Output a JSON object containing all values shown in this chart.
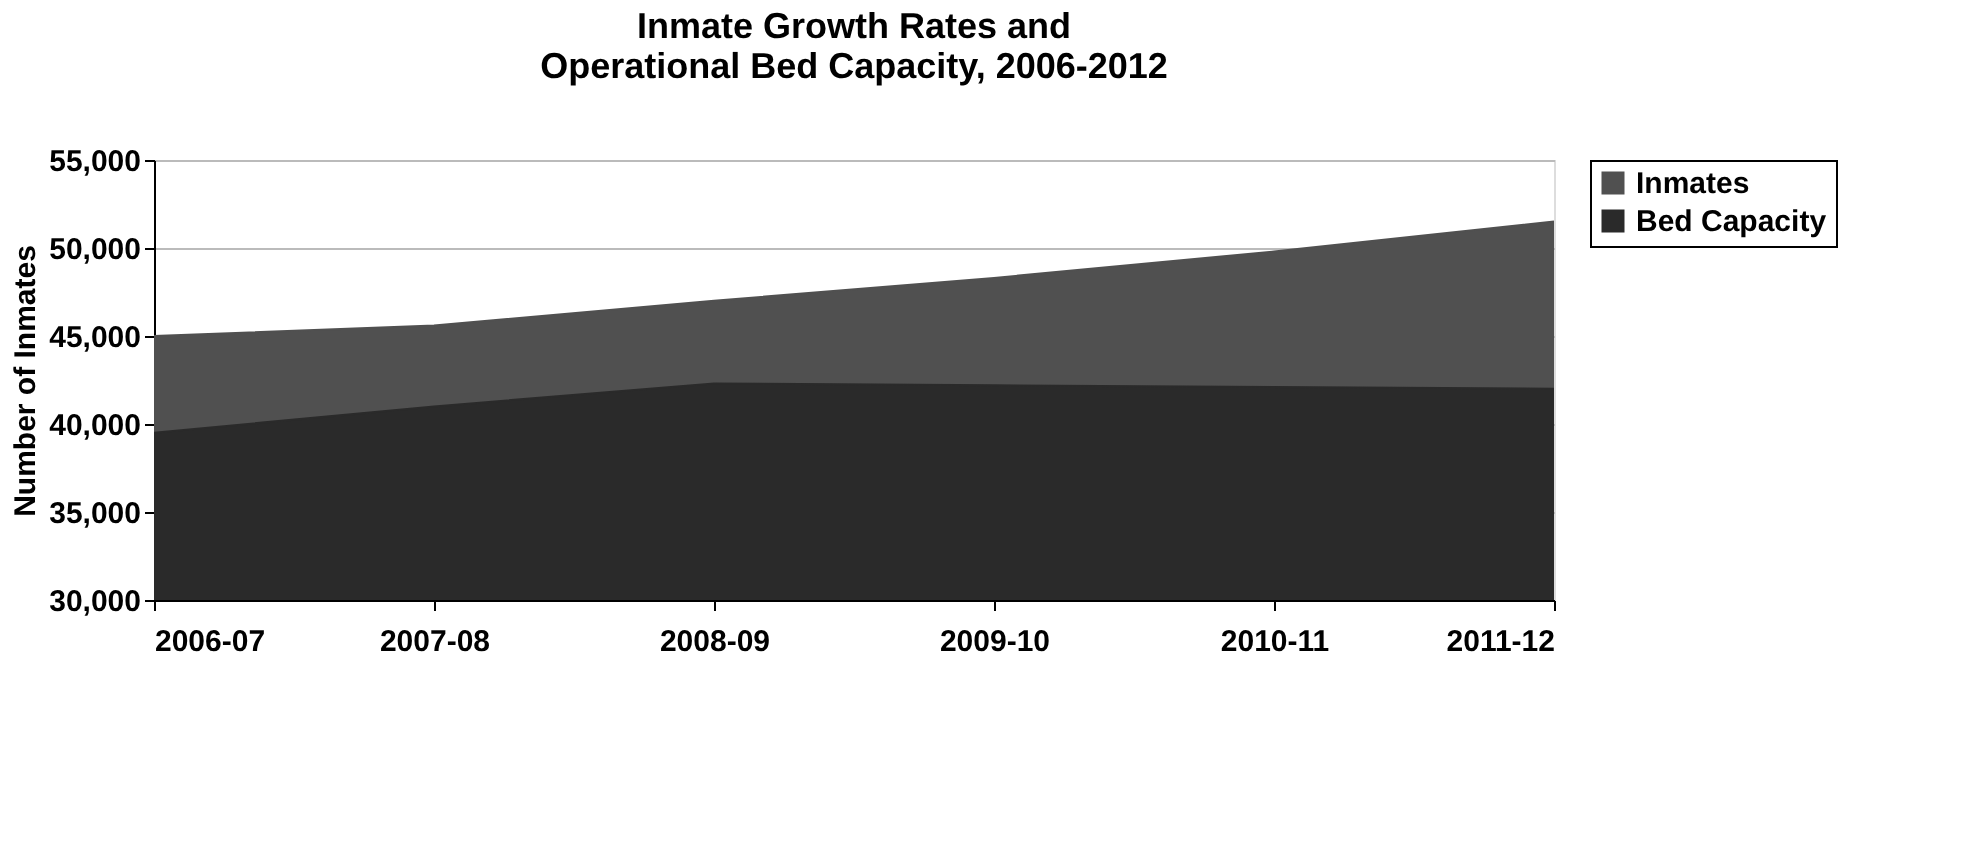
{
  "chart_data": {
    "type": "area",
    "title": "Inmate Growth Rates and\nOperational Bed Capacity, 2006-2012",
    "ylabel": "Number of Inmates",
    "categories": [
      "2006-07",
      "2007-08",
      "2008-09",
      "2009-10",
      "2010-11",
      "2011-12"
    ],
    "series": [
      {
        "name": "Inmates",
        "color": "#505050",
        "values": [
          45000,
          45600,
          47000,
          48300,
          49800,
          51500
        ]
      },
      {
        "name": "Bed Capacity",
        "color": "#2a2a2a",
        "values": [
          39500,
          41000,
          42300,
          42200,
          42100,
          42000
        ]
      }
    ],
    "ylim": [
      30000,
      55000
    ],
    "yticks": [
      {
        "value": 30000,
        "label": "30,000"
      },
      {
        "value": 35000,
        "label": "35,000"
      },
      {
        "value": 40000,
        "label": "40,000"
      },
      {
        "value": 45000,
        "label": "45,000"
      },
      {
        "value": 50000,
        "label": "50,000"
      },
      {
        "value": 55000,
        "label": "55,000"
      }
    ],
    "grid": "y",
    "legend": "right"
  }
}
